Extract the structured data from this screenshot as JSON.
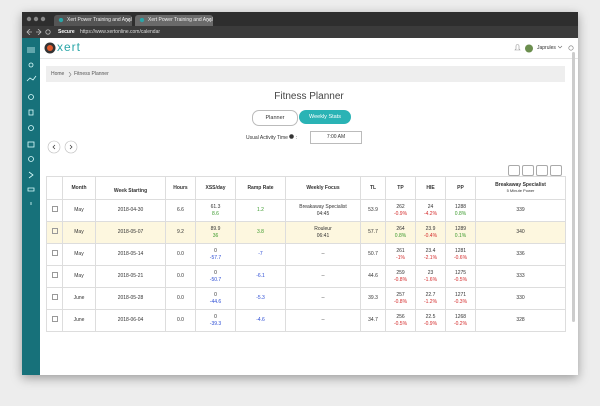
{
  "browser": {
    "tabs": [
      "Xert Power Training and Anal",
      "Xert Power Training and Anal"
    ],
    "secure": "Secure",
    "url": "https://www.xertonline.com/calendar"
  },
  "app": {
    "logo": "xert",
    "user": "Japrules"
  },
  "breadcrumb": [
    "Home",
    "Fitness Planner"
  ],
  "title": "Fitness Planner",
  "buttons": [
    "Planner",
    "Weekly Stats"
  ],
  "activity_time_label": "Usual Activity Time",
  "activity_time_sep": ":",
  "activity_time": "7:00 AM",
  "table": {
    "headers": [
      "Month",
      "Week Starting",
      "Hours",
      "XSS/day",
      "Ramp Rate",
      "Weekly Focus",
      "TL",
      "TP",
      "HIE",
      "PP",
      "Breakaway Specialist"
    ],
    "header_sub": "5 Minute Power",
    "rows": [
      {
        "month": "May",
        "week": "2018-04-30",
        "hours": "6.6",
        "xss": "61.3",
        "xss_delta": "8.6",
        "ramp": "1.2",
        "focus": "Breakaway Specialist",
        "focus_time": "04:45",
        "tl": "53.9",
        "tp": "262",
        "tp_delta": "-0.9%",
        "hie": "24",
        "hie_delta": "-4.2%",
        "pp": "1288",
        "pp_delta": "0.8%",
        "breakaway": "339"
      },
      {
        "month": "May",
        "week": "2018-05-07",
        "hours": "9.2",
        "xss": "89.9",
        "xss_delta": "36",
        "ramp": "3.8",
        "focus": "Rouleur",
        "focus_time": "06:41",
        "tl": "57.7",
        "tp": "264",
        "tp_delta": "0.8%",
        "hie": "23.9",
        "hie_delta": "-0.4%",
        "pp": "1289",
        "pp_delta": "0.1%",
        "breakaway": "340"
      },
      {
        "month": "May",
        "week": "2018-05-14",
        "hours": "0.0",
        "xss": "0",
        "xss_delta": "-57.7",
        "ramp": "-7",
        "focus": "--",
        "tl": "50.7",
        "tp": "261",
        "tp_delta": "-1%",
        "hie": "23.4",
        "hie_delta": "-2.1%",
        "pp": "1281",
        "pp_delta": "-0.6%",
        "breakaway": "336"
      },
      {
        "month": "May",
        "week": "2018-05-21",
        "hours": "0.0",
        "xss": "0",
        "xss_delta": "-50.7",
        "ramp": "-6.1",
        "focus": "--",
        "tl": "44.6",
        "tp": "259",
        "tp_delta": "-0.8%",
        "hie": "23",
        "hie_delta": "-1.6%",
        "pp": "1275",
        "pp_delta": "-0.5%",
        "breakaway": "333"
      },
      {
        "month": "June",
        "week": "2018-05-28",
        "hours": "0.0",
        "xss": "0",
        "xss_delta": "-44.6",
        "ramp": "-5.3",
        "focus": "--",
        "tl": "39.3",
        "tp": "257",
        "tp_delta": "-0.8%",
        "hie": "22.7",
        "hie_delta": "-1.2%",
        "pp": "1271",
        "pp_delta": "-0.3%",
        "breakaway": "330"
      },
      {
        "month": "June",
        "week": "2018-06-04",
        "hours": "0.0",
        "xss": "0",
        "xss_delta": "-39.3",
        "ramp": "-4.6",
        "focus": "--",
        "tl": "34.7",
        "tp": "256",
        "tp_delta": "-0.5%",
        "hie": "22.5",
        "hie_delta": "-0.9%",
        "pp": "1268",
        "pp_delta": "-0.2%",
        "breakaway": "328"
      }
    ]
  }
}
